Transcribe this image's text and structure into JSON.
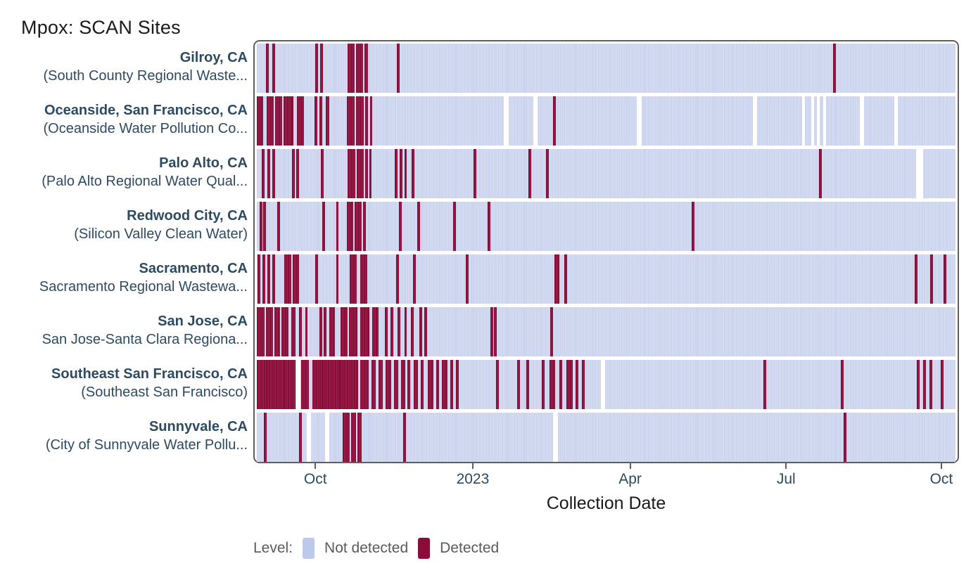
{
  "title": "Mpox: SCAN Sites",
  "xlabel": "Collection Date",
  "legend": {
    "label": "Level:",
    "items": [
      {
        "name": "Not detected",
        "color": "#bdc9ea"
      },
      {
        "name": "Detected",
        "color": "#8a0c38"
      }
    ]
  },
  "chart_data": {
    "type": "heatmap",
    "title": "Mpox: SCAN Sites",
    "xlabel": "Collection Date",
    "x_axis": {
      "tick_labels": [
        "Oct",
        "2023",
        "Apr",
        "Jul",
        "Oct"
      ],
      "tick_pos_pct": [
        8.8,
        31.1,
        53.4,
        75.5,
        97.5
      ],
      "approx_domain": [
        "2022-08-27",
        "2023-10-10"
      ]
    },
    "levels": {
      "not_detected_color": "#ccd4ee",
      "not_detected_line": "#dfe5f5",
      "detected_color": "#8a0c38",
      "detected_line": "#a43a5c",
      "border": "#5e5e5e",
      "label_color": "#2d4a63"
    },
    "rows": [
      {
        "city": "Gilroy, CA",
        "facility": "(South County Regional Waste...",
        "detected_pct": [
          [
            1.3,
            1.7
          ],
          [
            2.2,
            2.6
          ],
          [
            8.4,
            8.8
          ],
          [
            9.1,
            9.5
          ],
          [
            13.0,
            14.0
          ],
          [
            14.2,
            15.2
          ],
          [
            15.4,
            15.9
          ],
          [
            20.0,
            20.4
          ],
          [
            82.5,
            82.9
          ]
        ],
        "gaps_pct": []
      },
      {
        "city": "Oceanside, San Francisco, CA",
        "facility": "(Oceanside Water Pollution Co...",
        "detected_pct": [
          [
            0.0,
            0.9
          ],
          [
            1.4,
            2.4
          ],
          [
            2.6,
            3.6
          ],
          [
            3.8,
            5.2
          ],
          [
            5.7,
            6.7
          ],
          [
            8.3,
            8.7
          ],
          [
            9.0,
            9.4
          ],
          [
            9.9,
            10.4
          ],
          [
            12.9,
            14.0
          ],
          [
            14.2,
            15.3
          ],
          [
            15.5,
            15.9
          ],
          [
            16.2,
            16.5
          ],
          [
            42.4,
            42.8
          ]
        ],
        "gaps_pct": [
          [
            35.3,
            36.1
          ],
          [
            39.6,
            40.2
          ],
          [
            54.4,
            55.1
          ],
          [
            71.0,
            71.6
          ],
          [
            78.0,
            78.4
          ],
          [
            79.4,
            79.8
          ],
          [
            80.2,
            80.6
          ],
          [
            81.1,
            81.5
          ],
          [
            86.3,
            86.9
          ],
          [
            91.2,
            91.7
          ]
        ]
      },
      {
        "city": "Palo Alto, CA",
        "facility": "(Palo Alto Regional Water Qual...",
        "detected_pct": [
          [
            0.7,
            1.1
          ],
          [
            1.5,
            1.9
          ],
          [
            2.2,
            2.6
          ],
          [
            5.0,
            5.4
          ],
          [
            5.6,
            6.0
          ],
          [
            9.2,
            9.6
          ],
          [
            13.0,
            14.1
          ],
          [
            14.3,
            15.3
          ],
          [
            15.5,
            15.9
          ],
          [
            16.1,
            16.4
          ],
          [
            19.7,
            20.1
          ],
          [
            20.4,
            20.8
          ],
          [
            21.1,
            21.5
          ],
          [
            22.2,
            22.6
          ],
          [
            31.0,
            31.4
          ],
          [
            38.9,
            39.3
          ],
          [
            41.4,
            41.8
          ],
          [
            80.5,
            80.9
          ]
        ],
        "gaps_pct": [
          [
            94.4,
            95.4
          ]
        ]
      },
      {
        "city": "Redwood City, CA",
        "facility": "(Silicon Valley Clean Water)",
        "detected_pct": [
          [
            0.4,
            0.8
          ],
          [
            0.9,
            1.3
          ],
          [
            2.9,
            3.3
          ],
          [
            9.4,
            9.8
          ],
          [
            11.4,
            11.7
          ],
          [
            12.9,
            13.8
          ],
          [
            14.0,
            15.0
          ],
          [
            15.2,
            15.6
          ],
          [
            20.3,
            20.7
          ],
          [
            23.0,
            23.4
          ],
          [
            28.1,
            28.5
          ],
          [
            33.0,
            33.4
          ],
          [
            62.2,
            62.6
          ]
        ],
        "gaps_pct": []
      },
      {
        "city": "Sacramento, CA",
        "facility": "Sacramento Regional Wastewa...",
        "detected_pct": [
          [
            0.1,
            0.5
          ],
          [
            0.8,
            1.2
          ],
          [
            1.5,
            1.9
          ],
          [
            2.2,
            2.6
          ],
          [
            3.9,
            4.9
          ],
          [
            5.1,
            6.0
          ],
          [
            8.4,
            8.8
          ],
          [
            11.4,
            11.7
          ],
          [
            13.3,
            14.3
          ],
          [
            14.8,
            15.8
          ],
          [
            19.9,
            20.3
          ],
          [
            22.4,
            22.8
          ],
          [
            29.9,
            30.3
          ],
          [
            42.6,
            43.3
          ],
          [
            44.0,
            44.4
          ],
          [
            94.2,
            94.6
          ],
          [
            96.4,
            96.8
          ],
          [
            98.3,
            98.7
          ]
        ],
        "gaps_pct": []
      },
      {
        "city": "San Jose, CA",
        "facility": "San Jose-Santa Clara Regiona...",
        "detected_pct": [
          [
            0.0,
            1.1
          ],
          [
            1.3,
            2.3
          ],
          [
            2.5,
            3.3
          ],
          [
            3.5,
            4.5
          ],
          [
            4.9,
            5.5
          ],
          [
            6.0,
            6.4
          ],
          [
            6.9,
            7.3
          ],
          [
            9.0,
            9.4
          ],
          [
            9.6,
            10.0
          ],
          [
            10.4,
            11.2
          ],
          [
            12.0,
            13.0
          ],
          [
            13.2,
            14.4
          ],
          [
            14.8,
            16.1
          ],
          [
            16.5,
            17.4
          ],
          [
            18.3,
            18.7
          ],
          [
            19.1,
            19.5
          ],
          [
            20.1,
            20.5
          ],
          [
            21.1,
            21.5
          ],
          [
            22.1,
            22.5
          ],
          [
            23.3,
            23.7
          ],
          [
            24.0,
            24.4
          ],
          [
            33.4,
            33.8
          ],
          [
            33.9,
            34.3
          ],
          [
            42.0,
            42.4
          ]
        ],
        "gaps_pct": []
      },
      {
        "city": "Southeast San Francisco, CA",
        "facility": "(Southeast San Francisco)",
        "detected_pct": [
          [
            0.0,
            5.5
          ],
          [
            6.3,
            7.5
          ],
          [
            8.0,
            14.5
          ],
          [
            14.8,
            16.0
          ],
          [
            16.4,
            17.0
          ],
          [
            17.4,
            18.0
          ],
          [
            18.4,
            19.2
          ],
          [
            19.6,
            20.2
          ],
          [
            20.6,
            21.2
          ],
          [
            21.6,
            22.0
          ],
          [
            22.5,
            23.1
          ],
          [
            23.5,
            23.9
          ],
          [
            24.5,
            25.3
          ],
          [
            25.7,
            26.1
          ],
          [
            26.5,
            27.3
          ],
          [
            27.7,
            28.1
          ],
          [
            28.5,
            28.9
          ],
          [
            34.2,
            34.6
          ],
          [
            37.3,
            37.7
          ],
          [
            38.6,
            39.0
          ],
          [
            40.8,
            41.2
          ],
          [
            41.9,
            42.7
          ],
          [
            43.3,
            43.7
          ],
          [
            44.3,
            45.2
          ],
          [
            45.6,
            46.0
          ],
          [
            46.5,
            46.9
          ],
          [
            72.5,
            72.9
          ],
          [
            83.6,
            84.0
          ],
          [
            94.5,
            94.9
          ],
          [
            95.4,
            95.8
          ],
          [
            96.3,
            96.7
          ],
          [
            97.9,
            98.3
          ]
        ],
        "gaps_pct": [
          [
            5.6,
            6.2
          ],
          [
            49.2,
            49.9
          ]
        ]
      },
      {
        "city": "Sunnyvale, CA",
        "facility": "(City of Sunnyvale Water Pollu...",
        "detected_pct": [
          [
            1.0,
            1.4
          ],
          [
            6.0,
            6.4
          ],
          [
            12.3,
            13.3
          ],
          [
            13.5,
            14.2
          ],
          [
            14.4,
            15.0
          ],
          [
            20.9,
            21.3
          ],
          [
            84.0,
            84.4
          ]
        ],
        "gaps_pct": [
          [
            7.2,
            7.8
          ],
          [
            9.8,
            10.4
          ],
          [
            42.4,
            43.1
          ]
        ]
      }
    ]
  }
}
